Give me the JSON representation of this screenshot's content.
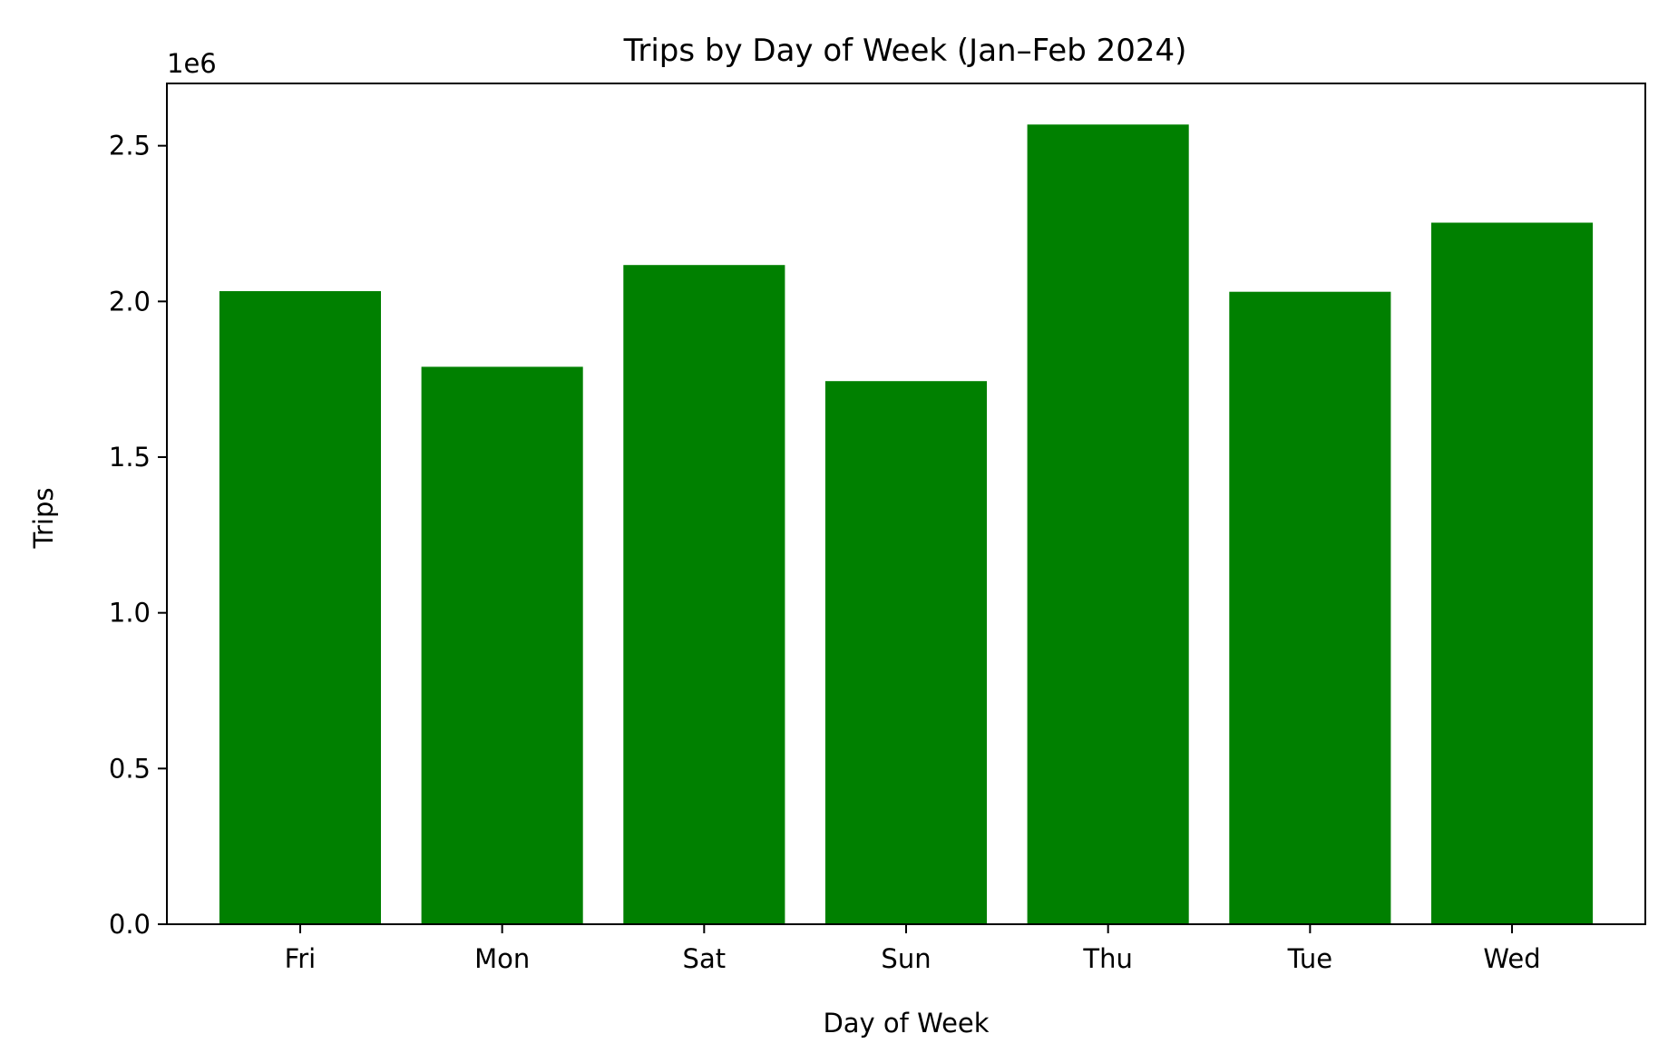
{
  "chart_data": {
    "type": "bar",
    "title": "Trips by Day of Week (Jan–Feb 2024)",
    "xlabel": "Day of Week",
    "ylabel": "Trips",
    "y_offset_label": "1e6",
    "categories": [
      "Fri",
      "Mon",
      "Sat",
      "Sun",
      "Thu",
      "Tue",
      "Wed"
    ],
    "values": [
      2033000,
      1790000,
      2117000,
      1744000,
      2568000,
      2031000,
      2253000
    ],
    "ylim": [
      0,
      2700000
    ],
    "yticks": [
      0,
      500000,
      1000000,
      1500000,
      2000000,
      2500000
    ],
    "ytick_labels": [
      "0.0",
      "0.5",
      "1.0",
      "1.5",
      "2.0",
      "2.5"
    ],
    "bar_color": "#008000",
    "grid": false,
    "legend": false
  }
}
